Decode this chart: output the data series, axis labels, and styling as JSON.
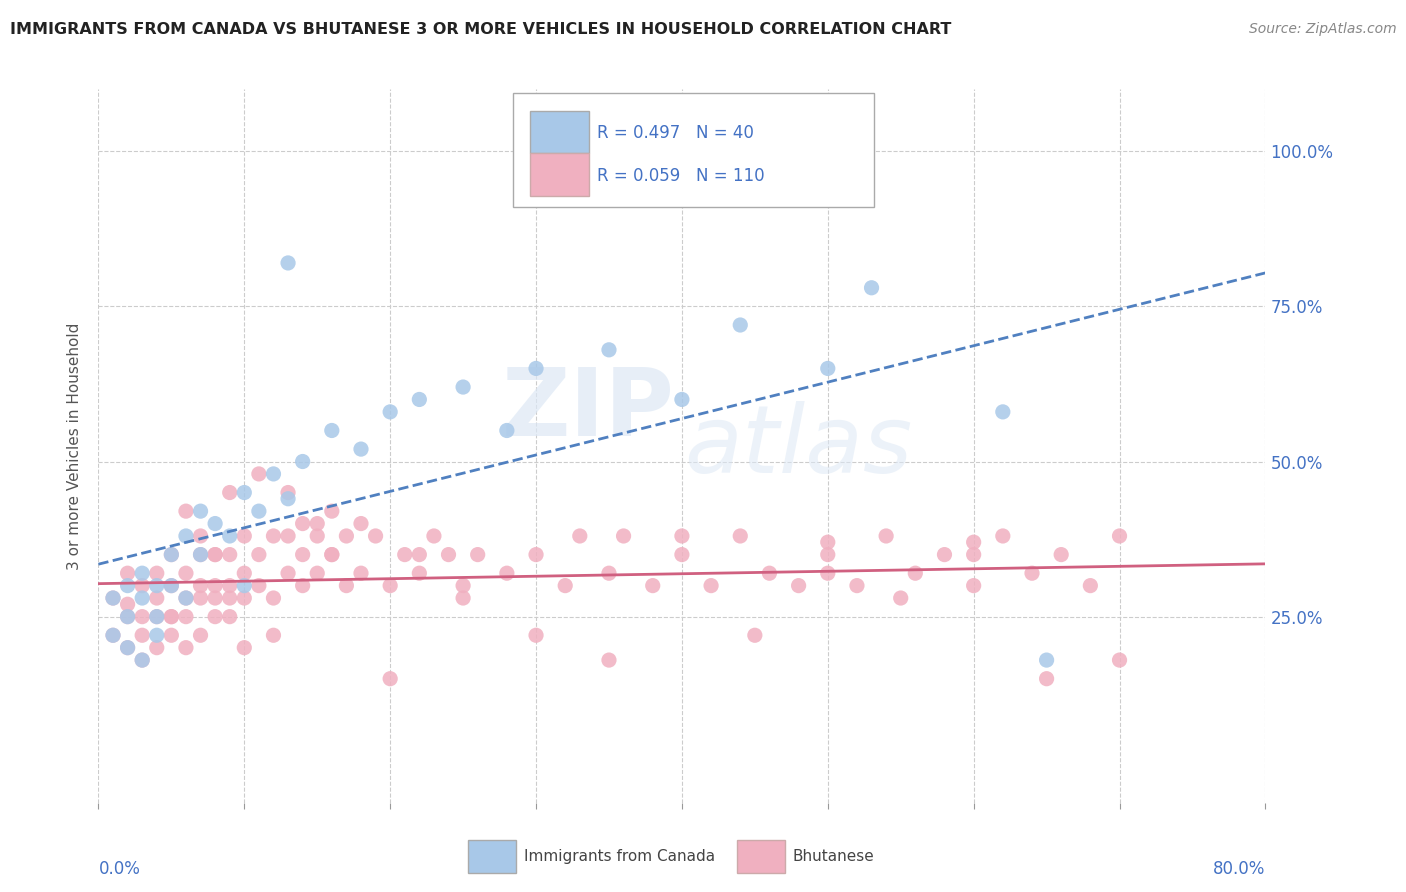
{
  "title": "IMMIGRANTS FROM CANADA VS BHUTANESE 3 OR MORE VEHICLES IN HOUSEHOLD CORRELATION CHART",
  "source": "Source: ZipAtlas.com",
  "ylabel": "3 or more Vehicles in Household",
  "legend_label_blue": "Immigrants from Canada",
  "legend_label_pink": "Bhutanese",
  "r_blue": "R = 0.497",
  "n_blue": "N = 40",
  "r_pink": "R = 0.059",
  "n_pink": "N = 110",
  "blue_color": "#a8c8e8",
  "pink_color": "#f0b0c0",
  "trendline_blue": "#5080c0",
  "trendline_pink": "#d06080",
  "background_color": "#ffffff",
  "xlim": [
    0.0,
    0.8
  ],
  "ylim": [
    -0.05,
    1.1
  ],
  "blue_scatter_x": [
    0.01,
    0.01,
    0.02,
    0.02,
    0.02,
    0.03,
    0.03,
    0.03,
    0.04,
    0.04,
    0.04,
    0.05,
    0.05,
    0.06,
    0.06,
    0.07,
    0.07,
    0.08,
    0.09,
    0.1,
    0.1,
    0.11,
    0.12,
    0.13,
    0.14,
    0.16,
    0.18,
    0.2,
    0.22,
    0.25,
    0.28,
    0.3,
    0.35,
    0.4,
    0.44,
    0.5,
    0.53,
    0.62,
    0.65,
    0.13
  ],
  "blue_scatter_y": [
    0.28,
    0.22,
    0.3,
    0.25,
    0.2,
    0.28,
    0.32,
    0.18,
    0.3,
    0.25,
    0.22,
    0.3,
    0.35,
    0.38,
    0.28,
    0.35,
    0.42,
    0.4,
    0.38,
    0.45,
    0.3,
    0.42,
    0.48,
    0.44,
    0.5,
    0.55,
    0.52,
    0.58,
    0.6,
    0.62,
    0.55,
    0.65,
    0.68,
    0.6,
    0.72,
    0.65,
    0.78,
    0.58,
    0.18,
    0.82
  ],
  "pink_scatter_x": [
    0.01,
    0.01,
    0.02,
    0.02,
    0.02,
    0.02,
    0.03,
    0.03,
    0.03,
    0.03,
    0.04,
    0.04,
    0.04,
    0.04,
    0.05,
    0.05,
    0.05,
    0.05,
    0.06,
    0.06,
    0.06,
    0.06,
    0.07,
    0.07,
    0.07,
    0.07,
    0.08,
    0.08,
    0.08,
    0.08,
    0.09,
    0.09,
    0.09,
    0.09,
    0.1,
    0.1,
    0.1,
    0.11,
    0.11,
    0.12,
    0.12,
    0.13,
    0.13,
    0.14,
    0.14,
    0.15,
    0.15,
    0.16,
    0.16,
    0.17,
    0.18,
    0.19,
    0.2,
    0.21,
    0.22,
    0.23,
    0.24,
    0.25,
    0.26,
    0.28,
    0.3,
    0.32,
    0.33,
    0.35,
    0.36,
    0.38,
    0.4,
    0.42,
    0.44,
    0.46,
    0.48,
    0.5,
    0.52,
    0.54,
    0.56,
    0.58,
    0.6,
    0.62,
    0.64,
    0.66,
    0.68,
    0.7,
    0.05,
    0.06,
    0.07,
    0.08,
    0.09,
    0.1,
    0.11,
    0.12,
    0.13,
    0.14,
    0.15,
    0.16,
    0.17,
    0.18,
    0.2,
    0.22,
    0.25,
    0.3,
    0.35,
    0.4,
    0.45,
    0.5,
    0.55,
    0.6,
    0.65,
    0.7,
    0.5,
    0.6
  ],
  "pink_scatter_y": [
    0.28,
    0.22,
    0.27,
    0.32,
    0.2,
    0.25,
    0.3,
    0.25,
    0.22,
    0.18,
    0.28,
    0.32,
    0.25,
    0.2,
    0.3,
    0.25,
    0.35,
    0.22,
    0.28,
    0.32,
    0.25,
    0.2,
    0.3,
    0.28,
    0.35,
    0.22,
    0.3,
    0.25,
    0.35,
    0.28,
    0.3,
    0.25,
    0.35,
    0.28,
    0.32,
    0.28,
    0.38,
    0.3,
    0.35,
    0.28,
    0.38,
    0.32,
    0.38,
    0.3,
    0.4,
    0.32,
    0.38,
    0.35,
    0.42,
    0.3,
    0.32,
    0.38,
    0.3,
    0.35,
    0.32,
    0.38,
    0.35,
    0.3,
    0.35,
    0.32,
    0.35,
    0.3,
    0.38,
    0.32,
    0.38,
    0.3,
    0.35,
    0.3,
    0.38,
    0.32,
    0.3,
    0.35,
    0.3,
    0.38,
    0.32,
    0.35,
    0.3,
    0.38,
    0.32,
    0.35,
    0.3,
    0.38,
    0.25,
    0.42,
    0.38,
    0.35,
    0.45,
    0.2,
    0.48,
    0.22,
    0.45,
    0.35,
    0.4,
    0.35,
    0.38,
    0.4,
    0.15,
    0.35,
    0.28,
    0.22,
    0.18,
    0.38,
    0.22,
    0.32,
    0.28,
    0.35,
    0.15,
    0.18,
    0.37,
    0.37
  ]
}
